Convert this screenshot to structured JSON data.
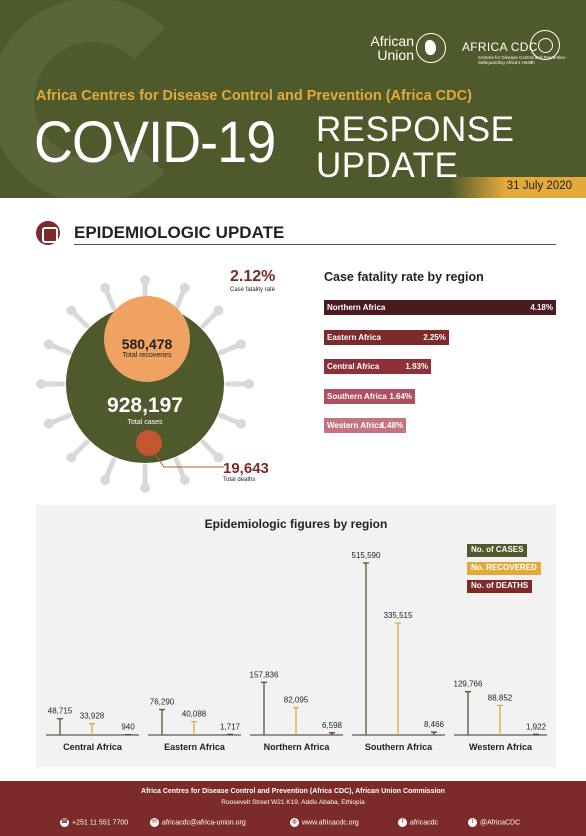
{
  "header": {
    "au_logo": "African Union",
    "cdc_logo": "AFRICA CDC",
    "cdc_tagline": "Centres for Disease Control and Prevention · Safeguarding Africa's Health",
    "org_title": "Africa Centres for Disease Control and Prevention (Africa CDC)",
    "title_main": "COVID-19",
    "title_line1": "RESPONSE",
    "title_line2": "UPDATE",
    "date": "31 July 2020"
  },
  "section": {
    "title": "EPIDEMIOLOGIC UPDATE",
    "icon": "virus-magnifier-icon"
  },
  "summary": {
    "recoveries": "580,478",
    "recoveries_label": "Total recoveries",
    "cases": "928,197",
    "cases_label": "Total cases",
    "deaths": "19,643",
    "deaths_label": "Total deaths",
    "cfr": "2.12%",
    "cfr_label": "Case fatality rate"
  },
  "colors": {
    "olive": "#4e5a2c",
    "gold": "#e3a93a",
    "maroon": "#7d2a2a",
    "recovered_orange": "#f0a262",
    "deaths_orange": "#c2572f"
  },
  "chart_data": [
    {
      "type": "bar",
      "title": "Case fatality rate by region",
      "categories": [
        "Northern Africa",
        "Eastern Africa",
        "Central Africa",
        "Southern Africa",
        "Western Africa"
      ],
      "values": [
        4.18,
        2.25,
        1.93,
        1.64,
        1.48
      ],
      "value_labels": [
        "4.18%",
        "2.25%",
        "1.93%",
        "1.64%",
        "1.48%"
      ],
      "colors": [
        "#4a1a1f",
        "#7d2a2a",
        "#8e3038",
        "#b04f5e",
        "#c47480"
      ],
      "orientation": "horizontal"
    },
    {
      "type": "bar",
      "title": "Epidemiologic figures by region",
      "categories": [
        "Central Africa",
        "Eastern Africa",
        "Northern Africa",
        "Southern Africa",
        "Western Africa"
      ],
      "series": [
        {
          "name": "No. of CASES",
          "color": "#4e5a2c",
          "values": [
            48715,
            76290,
            157836,
            515590,
            129766
          ],
          "labels": [
            "48,715",
            "76,290",
            "157,836",
            "515,590",
            "129,766"
          ]
        },
        {
          "name": "No. RECOVERED",
          "color": "#e3a93a",
          "values": [
            33928,
            40088,
            82095,
            335515,
            88852
          ],
          "labels": [
            "33,928",
            "40,088",
            "82,095",
            "335,515",
            "88,852"
          ]
        },
        {
          "name": "No. of DEATHS",
          "color": "#7d2a2a",
          "values": [
            940,
            1717,
            6598,
            8466,
            1922
          ],
          "labels": [
            "940",
            "1,717",
            "6,598",
            "8,466",
            "1,922"
          ]
        }
      ],
      "legend": "top-right",
      "style": "lollipop"
    }
  ],
  "footer": {
    "line1": "Africa Centres for Disease Control and Prevention (Africa CDC), African Union Commission",
    "line2": "Roosevelt Street W21 K19, Addis Ababa, Ethiopia",
    "phone": "+251 11 551 7700",
    "email": "africacdc@africa-union.org",
    "web": "www.africacdc.org",
    "facebook": "africacdc",
    "twitter": "@AfricaCDC"
  }
}
